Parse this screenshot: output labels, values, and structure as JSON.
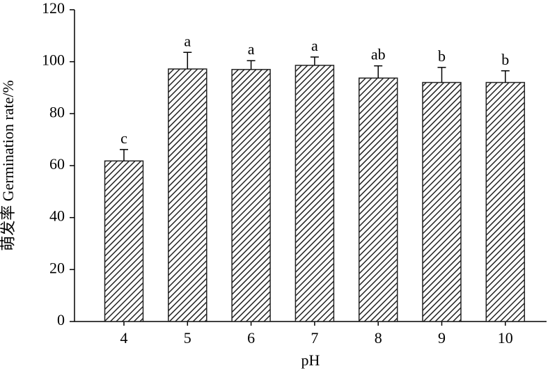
{
  "chart_data": {
    "type": "bar",
    "x_label": "pH",
    "y_label": "萌发率 Germination rate/%",
    "categories": [
      "4",
      "5",
      "6",
      "7",
      "8",
      "9",
      "10"
    ],
    "values": [
      61.8,
      97.2,
      97,
      98.6,
      93.7,
      92,
      92
    ],
    "errors": [
      4.4,
      6.4,
      3.4,
      3.2,
      4.7,
      5.8,
      4.5
    ],
    "letters": [
      "c",
      "a",
      "a",
      "a",
      "ab",
      "b",
      "b"
    ],
    "color": "#222222",
    "ylim": [
      0,
      120
    ],
    "yticks": [
      0,
      20,
      40,
      60,
      80,
      100,
      120
    ],
    "grid": false
  }
}
